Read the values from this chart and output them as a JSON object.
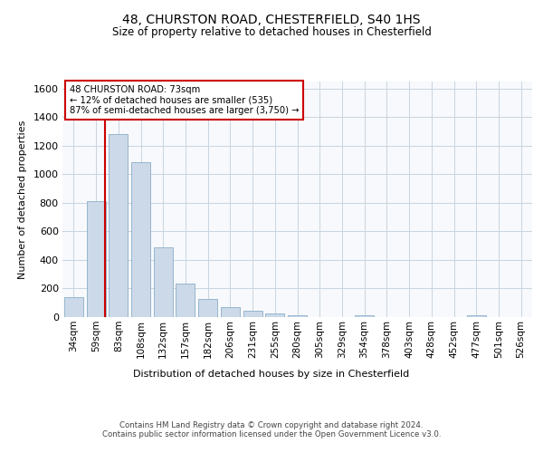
{
  "title": "48, CHURSTON ROAD, CHESTERFIELD, S40 1HS",
  "subtitle": "Size of property relative to detached houses in Chesterfield",
  "xlabel": "Distribution of detached houses by size in Chesterfield",
  "ylabel": "Number of detached properties",
  "categories": [
    "34sqm",
    "59sqm",
    "83sqm",
    "108sqm",
    "132sqm",
    "157sqm",
    "182sqm",
    "206sqm",
    "231sqm",
    "255sqm",
    "280sqm",
    "305sqm",
    "329sqm",
    "354sqm",
    "378sqm",
    "403sqm",
    "428sqm",
    "452sqm",
    "477sqm",
    "501sqm",
    "526sqm"
  ],
  "values": [
    140,
    815,
    1285,
    1085,
    490,
    235,
    130,
    70,
    42,
    28,
    15,
    0,
    0,
    12,
    0,
    0,
    0,
    0,
    15,
    0,
    0
  ],
  "bar_color": "#ccd9e8",
  "bar_edge_color": "#8aaec8",
  "vline_color": "#cc0000",
  "annotation_box_color": "#cc0000",
  "annotation_lines": [
    "48 CHURSTON ROAD: 73sqm",
    "← 12% of detached houses are smaller (535)",
    "87% of semi-detached houses are larger (3,750) →"
  ],
  "ylim": [
    0,
    1650
  ],
  "yticks": [
    0,
    200,
    400,
    600,
    800,
    1000,
    1200,
    1400,
    1600
  ],
  "footer_line1": "Contains HM Land Registry data © Crown copyright and database right 2024.",
  "footer_line2": "Contains public sector information licensed under the Open Government Licence v3.0.",
  "bg_color": "#ffffff",
  "plot_bg_color": "#f7f9fc",
  "grid_color": "#c8d4e0"
}
